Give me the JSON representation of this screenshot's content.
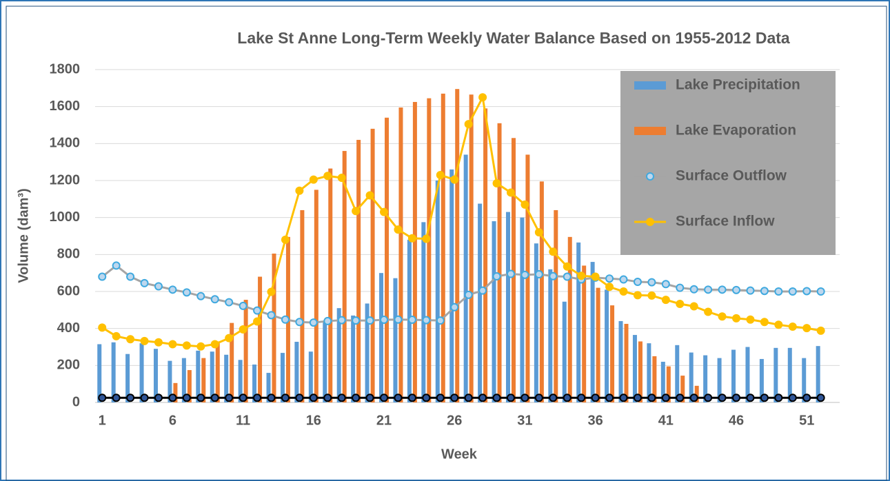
{
  "chart_data": {
    "type": "bar",
    "title": "Lake St Anne Long-Term Weekly Water Balance Based on 1955-2012 Data",
    "x_label": "Week",
    "y_label": "Volume (dam³)",
    "categories": [
      1,
      null,
      null,
      null,
      null,
      6,
      null,
      null,
      null,
      null,
      11,
      null,
      null,
      null,
      null,
      16,
      null,
      null,
      null,
      null,
      21,
      null,
      null,
      null,
      null,
      26,
      null,
      null,
      null,
      null,
      31,
      null,
      null,
      null,
      null,
      36,
      null,
      null,
      null,
      null,
      41,
      null,
      null,
      null,
      null,
      46,
      null,
      null,
      null,
      null,
      51,
      null
    ],
    "ylim": [
      0,
      1800
    ],
    "yticks": [
      0,
      200,
      400,
      600,
      800,
      1000,
      1200,
      1400,
      1600,
      1800
    ],
    "grid": true,
    "legend": "upper right",
    "series": [
      {
        "name": "Lake Precipitation",
        "type": "bar",
        "color": "#5b9bd5",
        "values": [
          315,
          325,
          262,
          320,
          290,
          225,
          240,
          280,
          275,
          258,
          230,
          205,
          160,
          268,
          328,
          275,
          440,
          510,
          470,
          535,
          700,
          672,
          880,
          975,
          1200,
          1260,
          1340,
          1075,
          980,
          1030,
          1000,
          860,
          720,
          545,
          865,
          760,
          610,
          440,
          365,
          320,
          220,
          310,
          270,
          255,
          240,
          285,
          300,
          235,
          295,
          295,
          240,
          305
        ]
      },
      {
        "name": "Lake Evaporation",
        "type": "bar",
        "color": "#ed7d31",
        "values": [
          0,
          0,
          0,
          0,
          0,
          105,
          175,
          240,
          330,
          430,
          555,
          680,
          805,
          895,
          1040,
          1150,
          1265,
          1360,
          1420,
          1480,
          1540,
          1595,
          1625,
          1645,
          1670,
          1695,
          1665,
          1590,
          1510,
          1430,
          1340,
          1195,
          1040,
          895,
          740,
          620,
          525,
          425,
          330,
          250,
          195,
          145,
          90,
          0,
          0,
          0,
          0,
          0,
          0,
          0,
          0,
          0
        ]
      },
      {
        "name": "Surface Outflow",
        "type": "line",
        "color": "#a5a5a5",
        "marker_color": "#3fa9df",
        "values": [
          680,
          740,
          680,
          645,
          628,
          610,
          595,
          575,
          558,
          542,
          522,
          497,
          472,
          448,
          435,
          432,
          440,
          445,
          443,
          443,
          447,
          448,
          447,
          445,
          443,
          515,
          582,
          605,
          682,
          695,
          690,
          693,
          683,
          680,
          665,
          675,
          670,
          665,
          652,
          650,
          640,
          620,
          612,
          610,
          610,
          608,
          605,
          603,
          600,
          600,
          602,
          600
        ]
      },
      {
        "name": "Surface Inflow",
        "type": "line",
        "color": "#ffc000",
        "marker_color": "#ffc000",
        "values": [
          405,
          358,
          342,
          332,
          325,
          315,
          308,
          303,
          315,
          348,
          395,
          438,
          598,
          880,
          1145,
          1205,
          1225,
          1215,
          1035,
          1120,
          1030,
          935,
          888,
          885,
          1230,
          1205,
          1505,
          1650,
          1185,
          1135,
          1070,
          920,
          815,
          735,
          685,
          680,
          625,
          600,
          580,
          578,
          555,
          533,
          520,
          490,
          465,
          455,
          448,
          435,
          420,
          410,
          402,
          388
        ]
      },
      {
        "type": "line",
        "color": "#000000",
        "marker_color": "#000000",
        "values": [
          25,
          25,
          25,
          25,
          25,
          25,
          25,
          25,
          25,
          25,
          25,
          25,
          25,
          25,
          25,
          25,
          25,
          25,
          25,
          25,
          25,
          25,
          25,
          25,
          25,
          25,
          25,
          25,
          25,
          25,
          25,
          25,
          25,
          25,
          25,
          25,
          25,
          25,
          25,
          25,
          25,
          25,
          25,
          25,
          25,
          25,
          25,
          25,
          25,
          25,
          25,
          25
        ]
      }
    ]
  }
}
